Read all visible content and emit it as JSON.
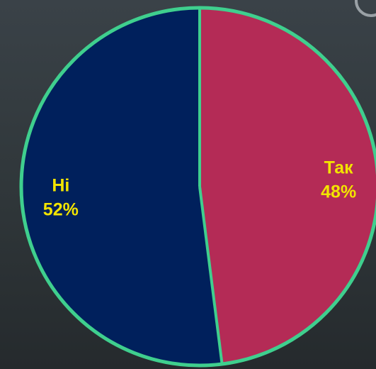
{
  "chart_data": {
    "type": "pie",
    "title": "",
    "slices": [
      {
        "label": "Так",
        "value": 48,
        "value_label": "48%",
        "color": "#b42b56"
      },
      {
        "label": "Ні",
        "value": 52,
        "value_label": "52%",
        "color": "#00205c"
      }
    ],
    "start_angle_deg": 0,
    "direction": "clockwise",
    "border_color": "#3fcf8e",
    "label_color": "#f2e400",
    "background_color": "#2f3639"
  }
}
